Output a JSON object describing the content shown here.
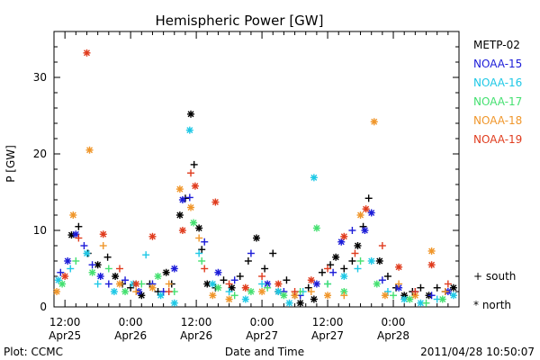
{
  "chart_data": {
    "type": "scatter",
    "title": "Hemispheric Power [GW]",
    "ylabel": "P [GW]",
    "xlabel": "Date and Time",
    "ylim": [
      0,
      36
    ],
    "yticks": [
      0,
      10,
      20,
      30
    ],
    "xticks": [
      {
        "t": 12,
        "line1": "12:00",
        "line2": "Apr25"
      },
      {
        "t": 24,
        "line1": "0:00",
        "line2": "Apr26"
      },
      {
        "t": 36,
        "line1": "12:00",
        "line2": "Apr26"
      },
      {
        "t": 48,
        "line1": "0:00",
        "line2": "Apr27"
      },
      {
        "t": 60,
        "line1": "12:00",
        "line2": "Apr27"
      },
      {
        "t": 72,
        "line1": "0:00",
        "line2": "Apr28"
      }
    ],
    "xlim_hours": [
      10,
      84
    ],
    "footer_left": "Plot: CCMC",
    "footer_right": "2011/04/28 10:50:07",
    "symbol_legend": {
      "plus": "+ south",
      "star": "* north"
    },
    "series": [
      {
        "name": "METP-02",
        "color": "#000000",
        "points": [
          [
            13.2,
            9.4,
            "s"
          ],
          [
            14.5,
            10.5,
            "p"
          ],
          [
            16.2,
            7,
            "p"
          ],
          [
            18,
            5.5,
            "s"
          ],
          [
            19.8,
            6.5,
            "p"
          ],
          [
            21.2,
            4,
            "s"
          ],
          [
            22.5,
            3,
            "p"
          ],
          [
            24,
            2.5,
            "p"
          ],
          [
            26,
            1.5,
            "s"
          ],
          [
            27.5,
            3,
            "p"
          ],
          [
            29,
            2,
            "p"
          ],
          [
            30.5,
            4.5,
            "s"
          ],
          [
            31.5,
            3,
            "p"
          ],
          [
            33,
            12,
            "s"
          ],
          [
            34,
            14.2,
            "p"
          ],
          [
            35,
            25.2,
            "s"
          ],
          [
            35.6,
            18.6,
            "p"
          ],
          [
            36.5,
            10.3,
            "s"
          ],
          [
            37,
            7.5,
            "p"
          ],
          [
            38,
            3,
            "s"
          ],
          [
            39.5,
            2.5,
            "p"
          ],
          [
            41,
            3.5,
            "p"
          ],
          [
            42.5,
            2.5,
            "s"
          ],
          [
            44,
            4,
            "p"
          ],
          [
            45.5,
            6,
            "p"
          ],
          [
            47,
            9,
            "s"
          ],
          [
            48.5,
            5,
            "p"
          ],
          [
            50,
            7,
            "p"
          ],
          [
            51,
            2,
            "s"
          ],
          [
            52.5,
            3.5,
            "p"
          ],
          [
            54,
            1.5,
            "p"
          ],
          [
            55,
            0.5,
            "s"
          ],
          [
            56.5,
            2.5,
            "p"
          ],
          [
            57.5,
            1,
            "s"
          ],
          [
            59,
            4.5,
            "p"
          ],
          [
            60.5,
            5.5,
            "p"
          ],
          [
            61.5,
            6.5,
            "s"
          ],
          [
            63,
            5,
            "p"
          ],
          [
            64.5,
            6,
            "p"
          ],
          [
            65.5,
            8,
            "s"
          ],
          [
            66.5,
            10.5,
            "p"
          ],
          [
            67.5,
            14.2,
            "p"
          ],
          [
            69.5,
            6,
            "s"
          ],
          [
            71,
            4,
            "p"
          ],
          [
            72.5,
            2.5,
            "p"
          ],
          [
            74,
            1.5,
            "s"
          ],
          [
            75.5,
            2,
            "p"
          ],
          [
            77,
            2.5,
            "p"
          ],
          [
            78.5,
            1.5,
            "s"
          ],
          [
            80,
            2.5,
            "p"
          ],
          [
            81.5,
            2,
            "p"
          ],
          [
            83,
            2.5,
            "s"
          ]
        ]
      },
      {
        "name": "NOAA-15",
        "color": "#1c1cd8",
        "points": [
          [
            11.2,
            4.5,
            "p"
          ],
          [
            12.5,
            6,
            "s"
          ],
          [
            14,
            9.5,
            "s"
          ],
          [
            15.5,
            8,
            "p"
          ],
          [
            17,
            5.5,
            "p"
          ],
          [
            18.5,
            4,
            "s"
          ],
          [
            20,
            3,
            "p"
          ],
          [
            23,
            3.5,
            "p"
          ],
          [
            25.5,
            2,
            "s"
          ],
          [
            28,
            3,
            "p"
          ],
          [
            30,
            2,
            "p"
          ],
          [
            32,
            5,
            "s"
          ],
          [
            33.5,
            14,
            "s"
          ],
          [
            34.8,
            14.3,
            "p"
          ],
          [
            37.5,
            8.5,
            "p"
          ],
          [
            40,
            4.5,
            "s"
          ],
          [
            43,
            3.5,
            "p"
          ],
          [
            46,
            7,
            "p"
          ],
          [
            49,
            3,
            "s"
          ],
          [
            52,
            2,
            "p"
          ],
          [
            55,
            1.5,
            "p"
          ],
          [
            58,
            3,
            "s"
          ],
          [
            61,
            4.5,
            "p"
          ],
          [
            62.5,
            8.5,
            "s"
          ],
          [
            64.5,
            10,
            "p"
          ],
          [
            66.8,
            10,
            "s"
          ],
          [
            68,
            12.3,
            "s"
          ],
          [
            70,
            3.5,
            "p"
          ],
          [
            73,
            2.5,
            "s"
          ],
          [
            76,
            2,
            "p"
          ],
          [
            79,
            1.5,
            "p"
          ],
          [
            82,
            2,
            "s"
          ]
        ]
      },
      {
        "name": "NOAA-16",
        "color": "#1ec8e6",
        "points": [
          [
            10.8,
            3.5,
            "s"
          ],
          [
            13,
            5,
            "p"
          ],
          [
            16,
            7,
            "s"
          ],
          [
            18,
            3,
            "p"
          ],
          [
            21,
            2,
            "s"
          ],
          [
            24.5,
            3,
            "s"
          ],
          [
            26.8,
            6.8,
            "p"
          ],
          [
            29.5,
            1.5,
            "s"
          ],
          [
            32,
            0.5,
            "s"
          ],
          [
            34.8,
            23.1,
            "s"
          ],
          [
            36.5,
            7,
            "p"
          ],
          [
            39,
            3,
            "s"
          ],
          [
            42,
            2,
            "p"
          ],
          [
            45,
            1,
            "s"
          ],
          [
            48,
            3,
            "p"
          ],
          [
            51,
            2,
            "s"
          ],
          [
            53,
            0.5,
            "s"
          ],
          [
            55.5,
            2,
            "p"
          ],
          [
            57.5,
            16.9,
            "s"
          ],
          [
            60,
            3,
            "p"
          ],
          [
            63,
            4,
            "s"
          ],
          [
            65.5,
            5,
            "p"
          ],
          [
            68,
            6,
            "s"
          ],
          [
            71,
            2,
            "p"
          ],
          [
            74,
            1,
            "s"
          ],
          [
            77,
            0.5,
            "s"
          ],
          [
            80,
            1,
            "p"
          ],
          [
            83,
            1.5,
            "s"
          ]
        ]
      },
      {
        "name": "NOAA-17",
        "color": "#44e070",
        "points": [
          [
            11.5,
            3,
            "s"
          ],
          [
            14,
            6,
            "p"
          ],
          [
            17,
            4.5,
            "s"
          ],
          [
            20,
            5,
            "p"
          ],
          [
            23,
            2,
            "s"
          ],
          [
            26,
            3,
            "p"
          ],
          [
            29,
            4,
            "s"
          ],
          [
            32,
            2,
            "p"
          ],
          [
            35.5,
            11,
            "s"
          ],
          [
            37,
            6,
            "p"
          ],
          [
            40,
            2.5,
            "s"
          ],
          [
            43,
            1.5,
            "p"
          ],
          [
            46,
            2,
            "s"
          ],
          [
            49,
            2.5,
            "p"
          ],
          [
            52,
            1.5,
            "s"
          ],
          [
            55,
            2,
            "p"
          ],
          [
            58,
            10.3,
            "s"
          ],
          [
            60,
            3,
            "p"
          ],
          [
            63,
            2,
            "s"
          ],
          [
            66,
            6,
            "p"
          ],
          [
            69,
            3,
            "s"
          ],
          [
            72,
            1.5,
            "p"
          ],
          [
            75,
            1,
            "s"
          ],
          [
            78,
            0.5,
            "p"
          ],
          [
            81,
            1,
            "s"
          ]
        ]
      },
      {
        "name": "NOAA-18",
        "color": "#f0962a",
        "points": [
          [
            10.5,
            2,
            "s"
          ],
          [
            13.5,
            12,
            "s"
          ],
          [
            16.5,
            20.5,
            "s"
          ],
          [
            19,
            8,
            "p"
          ],
          [
            22,
            3,
            "s"
          ],
          [
            25,
            2,
            "p"
          ],
          [
            28,
            2.5,
            "s"
          ],
          [
            31,
            3,
            "p"
          ],
          [
            33,
            15.4,
            "s"
          ],
          [
            35,
            13,
            "s"
          ],
          [
            36.5,
            9,
            "p"
          ],
          [
            39,
            1.5,
            "s"
          ],
          [
            42,
            1,
            "s"
          ],
          [
            45,
            2.5,
            "p"
          ],
          [
            48,
            2,
            "s"
          ],
          [
            51,
            3,
            "p"
          ],
          [
            54,
            1.5,
            "s"
          ],
          [
            57,
            2,
            "p"
          ],
          [
            60,
            1.5,
            "s"
          ],
          [
            63,
            1.5,
            "p"
          ],
          [
            66,
            12,
            "s"
          ],
          [
            68.5,
            24.2,
            "s"
          ],
          [
            70.5,
            1.5,
            "s"
          ],
          [
            73,
            3,
            "p"
          ],
          [
            76,
            1.5,
            "s"
          ],
          [
            79,
            7.3,
            "s"
          ],
          [
            81.5,
            2,
            "p"
          ]
        ]
      },
      {
        "name": "NOAA-19",
        "color": "#e03c1e",
        "points": [
          [
            12,
            4,
            "s"
          ],
          [
            14.5,
            9,
            "p"
          ],
          [
            16,
            33.2,
            "s"
          ],
          [
            19,
            9.5,
            "s"
          ],
          [
            22,
            5,
            "p"
          ],
          [
            25,
            3,
            "s"
          ],
          [
            28,
            9.2,
            "s"
          ],
          [
            31,
            2,
            "p"
          ],
          [
            33.5,
            10,
            "s"
          ],
          [
            35,
            17.5,
            "p"
          ],
          [
            35.8,
            15.8,
            "s"
          ],
          [
            37.5,
            5,
            "p"
          ],
          [
            39.5,
            13.7,
            "s"
          ],
          [
            42,
            3,
            "p"
          ],
          [
            45,
            2.5,
            "s"
          ],
          [
            48,
            4,
            "p"
          ],
          [
            51,
            3,
            "s"
          ],
          [
            54,
            2,
            "p"
          ],
          [
            57,
            3.5,
            "s"
          ],
          [
            60,
            5,
            "p"
          ],
          [
            63,
            9.2,
            "s"
          ],
          [
            65,
            7,
            "p"
          ],
          [
            67,
            12.8,
            "s"
          ],
          [
            70,
            8,
            "p"
          ],
          [
            73,
            5.2,
            "s"
          ],
          [
            76,
            2,
            "p"
          ],
          [
            79,
            5.5,
            "s"
          ],
          [
            82,
            3,
            "p"
          ]
        ]
      }
    ]
  }
}
